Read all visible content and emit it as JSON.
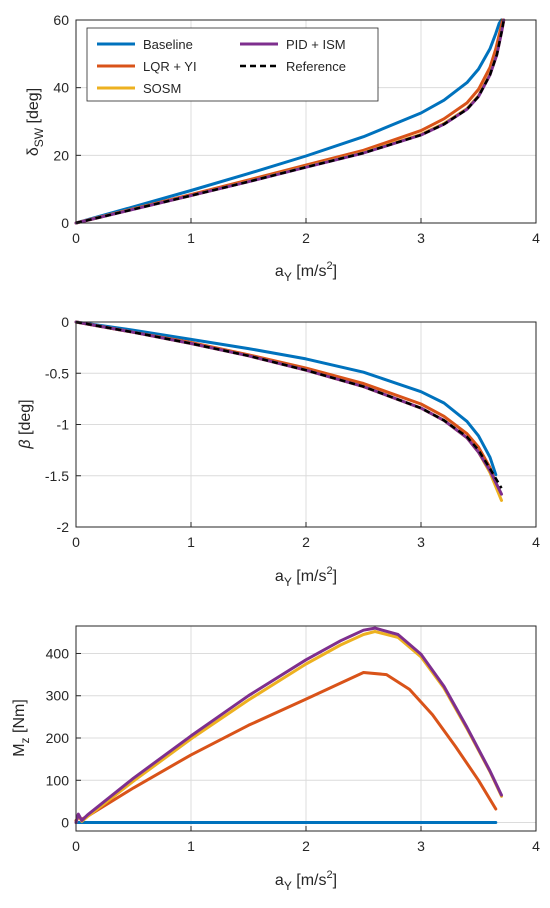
{
  "colors": {
    "baseline": "#0072BD",
    "lqr_yi": "#D95319",
    "sosm": "#EDB120",
    "pid_ism": "#7E2F8E",
    "reference": "#000000",
    "grid": "#dcdcdc",
    "axis": "#262626"
  },
  "legend": {
    "baseline": "Baseline",
    "lqr_yi": "LQR + YI",
    "sosm": "SOSM",
    "pid_ism": "PID + ISM",
    "reference": "Reference"
  },
  "chart_data": [
    {
      "type": "line",
      "ylabel_main": "δ",
      "ylabel_sub": "SW",
      "ylabel_unit": " [deg]",
      "xlabel_main": "a",
      "xlabel_sub": "Y",
      "xlabel_unit_a": " [m/s",
      "xlabel_unit_sup": "2",
      "xlabel_unit_b": "]",
      "xlim": [
        0,
        4
      ],
      "ylim": [
        0,
        60
      ],
      "xticks": [
        "0",
        "1",
        "2",
        "3",
        "4"
      ],
      "yticks": [
        "0",
        "20",
        "40",
        "60"
      ],
      "grid": true,
      "legend_position": "top-left",
      "series": [
        {
          "name": "Baseline",
          "x": [
            0,
            0.5,
            1,
            1.5,
            2,
            2.5,
            3,
            3.2,
            3.4,
            3.5,
            3.6,
            3.65,
            3.68,
            3.7
          ],
          "y": [
            0,
            4.8,
            9.6,
            14.6,
            19.8,
            25.5,
            32.5,
            36.3,
            41.5,
            45.5,
            51.5,
            56,
            59,
            61
          ]
        },
        {
          "name": "LQR + YI",
          "x": [
            0,
            0.5,
            1,
            1.5,
            2,
            2.5,
            3,
            3.2,
            3.4,
            3.5,
            3.6,
            3.65,
            3.69,
            3.71
          ],
          "y": [
            0,
            4.2,
            8.4,
            12.7,
            17.1,
            21.5,
            27.3,
            30.8,
            35.5,
            39.5,
            46,
            51.5,
            57,
            61
          ]
        },
        {
          "name": "SOSM",
          "x": [
            0,
            0.5,
            1,
            1.5,
            2,
            2.5,
            3,
            3.2,
            3.4,
            3.5,
            3.6,
            3.66,
            3.7,
            3.72
          ],
          "y": [
            0,
            4.1,
            8.1,
            12.3,
            16.6,
            20.8,
            26.2,
            29.4,
            33.8,
            37.6,
            44,
            50,
            56.5,
            61
          ]
        },
        {
          "name": "PID + ISM",
          "x": [
            0,
            0.5,
            1,
            1.5,
            2,
            2.5,
            3,
            3.2,
            3.4,
            3.5,
            3.6,
            3.66,
            3.7,
            3.72
          ],
          "y": [
            0,
            4.05,
            8.1,
            12.2,
            16.5,
            20.7,
            26,
            29.2,
            33.6,
            37.4,
            43.8,
            49.8,
            56.3,
            61
          ]
        },
        {
          "name": "Reference",
          "x": [
            0,
            0.5,
            1,
            1.5,
            2,
            2.5,
            3,
            3.2,
            3.4,
            3.5,
            3.6,
            3.66,
            3.7,
            3.72
          ],
          "y": [
            0,
            4.05,
            8.1,
            12.2,
            16.5,
            20.7,
            26,
            29.2,
            33.6,
            37.4,
            43.8,
            49.8,
            56.3,
            61
          ]
        }
      ]
    },
    {
      "type": "line",
      "ylabel_main": "β",
      "ylabel_sub": "",
      "ylabel_unit": " [deg]",
      "xlabel_main": "a",
      "xlabel_sub": "Y",
      "xlabel_unit_a": " [m/s",
      "xlabel_unit_sup": "2",
      "xlabel_unit_b": "]",
      "xlim": [
        0,
        4
      ],
      "ylim": [
        -2,
        0
      ],
      "xticks": [
        "0",
        "1",
        "2",
        "3",
        "4"
      ],
      "yticks": [
        "-2",
        "-1.5",
        "-1",
        "-0.5",
        "0"
      ],
      "grid": true,
      "series": [
        {
          "name": "Baseline",
          "x": [
            0,
            0.5,
            1,
            1.5,
            2,
            2.5,
            3,
            3.2,
            3.4,
            3.5,
            3.6,
            3.65
          ],
          "y": [
            0,
            -0.08,
            -0.17,
            -0.26,
            -0.36,
            -0.49,
            -0.68,
            -0.79,
            -0.97,
            -1.11,
            -1.32,
            -1.49
          ]
        },
        {
          "name": "LQR + YI",
          "x": [
            0,
            0.5,
            1,
            1.5,
            2,
            2.5,
            3,
            3.2,
            3.4,
            3.5,
            3.6,
            3.68
          ],
          "y": [
            0,
            -0.1,
            -0.2,
            -0.32,
            -0.45,
            -0.6,
            -0.8,
            -0.92,
            -1.09,
            -1.22,
            -1.42,
            -1.66
          ]
        },
        {
          "name": "SOSM",
          "x": [
            0,
            0.5,
            1,
            1.5,
            2,
            2.5,
            3,
            3.2,
            3.4,
            3.5,
            3.6,
            3.7
          ],
          "y": [
            0,
            -0.1,
            -0.21,
            -0.33,
            -0.47,
            -0.63,
            -0.84,
            -0.96,
            -1.13,
            -1.27,
            -1.47,
            -1.74
          ]
        },
        {
          "name": "PID + ISM",
          "x": [
            0,
            0.5,
            1,
            1.5,
            2,
            2.5,
            3,
            3.2,
            3.4,
            3.5,
            3.6,
            3.7
          ],
          "y": [
            0,
            -0.1,
            -0.21,
            -0.33,
            -0.47,
            -0.63,
            -0.84,
            -0.96,
            -1.13,
            -1.27,
            -1.45,
            -1.68
          ]
        },
        {
          "name": "Reference",
          "x": [
            0,
            0.5,
            1,
            1.5,
            2,
            2.5,
            3,
            3.2,
            3.4,
            3.5,
            3.6,
            3.7
          ],
          "y": [
            0,
            -0.1,
            -0.21,
            -0.33,
            -0.47,
            -0.63,
            -0.84,
            -0.96,
            -1.12,
            -1.25,
            -1.43,
            -1.62
          ]
        }
      ]
    },
    {
      "type": "line",
      "ylabel_main": "M",
      "ylabel_sub": "z",
      "ylabel_unit": " [Nm]",
      "xlabel_main": "a",
      "xlabel_sub": "Y",
      "xlabel_unit_a": " [m/s",
      "xlabel_unit_sup": "2",
      "xlabel_unit_b": "]",
      "xlim": [
        0,
        4
      ],
      "ylim": [
        -20,
        465
      ],
      "xticks": [
        "0",
        "1",
        "2",
        "3",
        "4"
      ],
      "yticks": [
        "0",
        "100",
        "200",
        "300",
        "400"
      ],
      "grid": true,
      "series": [
        {
          "name": "Baseline",
          "x": [
            0,
            0.05,
            1,
            2,
            3,
            3.65
          ],
          "y": [
            0,
            0,
            0,
            0,
            0,
            0
          ]
        },
        {
          "name": "LQR + YI",
          "x": [
            0,
            0.02,
            0.05,
            0.1,
            0.5,
            1,
            1.5,
            2,
            2.3,
            2.5,
            2.7,
            2.9,
            3.1,
            3.3,
            3.5,
            3.65
          ],
          "y": [
            5,
            12,
            8,
            15,
            82,
            160,
            230,
            292,
            330,
            355,
            350,
            315,
            255,
            180,
            100,
            32
          ]
        },
        {
          "name": "SOSM",
          "x": [
            0,
            0.02,
            0.05,
            0.1,
            0.5,
            1,
            1.5,
            2,
            2.3,
            2.5,
            2.6,
            2.8,
            3,
            3.2,
            3.4,
            3.6,
            3.7
          ],
          "y": [
            0,
            18,
            3,
            14,
            98,
            198,
            290,
            375,
            420,
            445,
            452,
            438,
            392,
            318,
            222,
            120,
            62
          ]
        },
        {
          "name": "PID + ISM",
          "x": [
            0,
            0.02,
            0.05,
            0.1,
            0.5,
            1,
            1.5,
            2,
            2.3,
            2.5,
            2.6,
            2.8,
            3,
            3.2,
            3.4,
            3.6,
            3.7
          ],
          "y": [
            0,
            20,
            5,
            18,
            105,
            205,
            300,
            385,
            430,
            455,
            460,
            445,
            398,
            322,
            225,
            122,
            65
          ]
        }
      ]
    }
  ]
}
